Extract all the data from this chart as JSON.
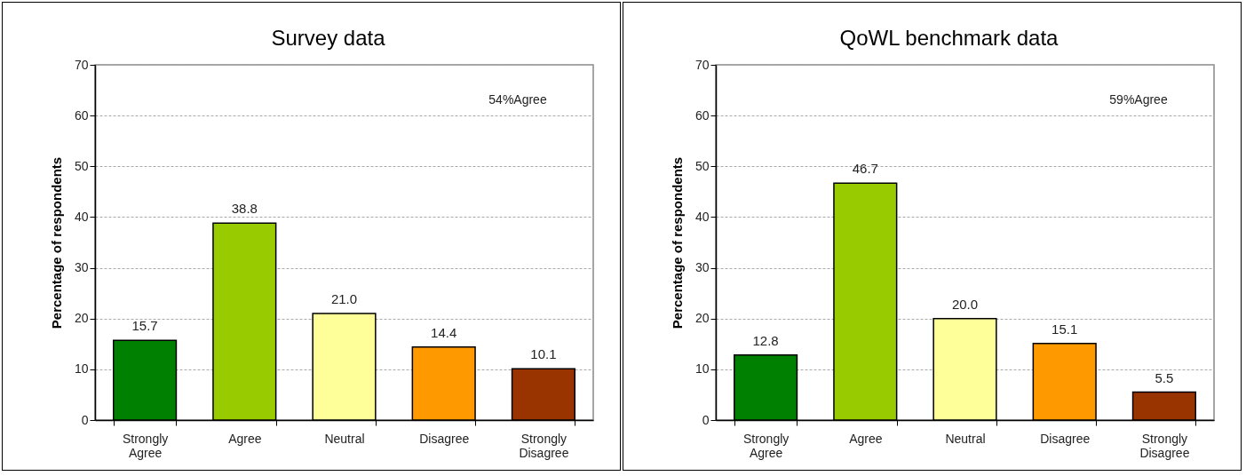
{
  "chart_data": [
    {
      "type": "bar",
      "title": "Survey data",
      "ylabel": "Percentage of respondents",
      "categories": [
        "Strongly Agree",
        "Agree",
        "Neutral",
        "Disagree",
        "Strongly Disagree"
      ],
      "values": [
        15.7,
        38.8,
        21.0,
        14.4,
        10.1
      ],
      "value_labels": [
        "15.7",
        "38.8",
        "21.0",
        "14.4",
        "10.1"
      ],
      "colors": [
        "#008000",
        "#99cc00",
        "#ffff99",
        "#ff9900",
        "#993300"
      ],
      "ylim": [
        0,
        70
      ],
      "yticks": [
        0,
        10,
        20,
        30,
        40,
        50,
        60,
        70
      ],
      "grid": "y",
      "annotations": [
        "54%Agree"
      ]
    },
    {
      "type": "bar",
      "title": "QoWL benchmark data",
      "ylabel": "Percentage of respondents",
      "categories": [
        "Strongly Agree",
        "Agree",
        "Neutral",
        "Disagree",
        "Strongly Disagree"
      ],
      "values": [
        12.8,
        46.7,
        20.0,
        15.1,
        5.5
      ],
      "value_labels": [
        "12.8",
        "46.7",
        "20.0",
        "15.1",
        "5.5"
      ],
      "colors": [
        "#008000",
        "#99cc00",
        "#ffff99",
        "#ff9900",
        "#993300"
      ],
      "ylim": [
        0,
        70
      ],
      "yticks": [
        0,
        10,
        20,
        30,
        40,
        50,
        60,
        70
      ],
      "grid": "y",
      "annotations": [
        "59%Agree"
      ]
    }
  ]
}
